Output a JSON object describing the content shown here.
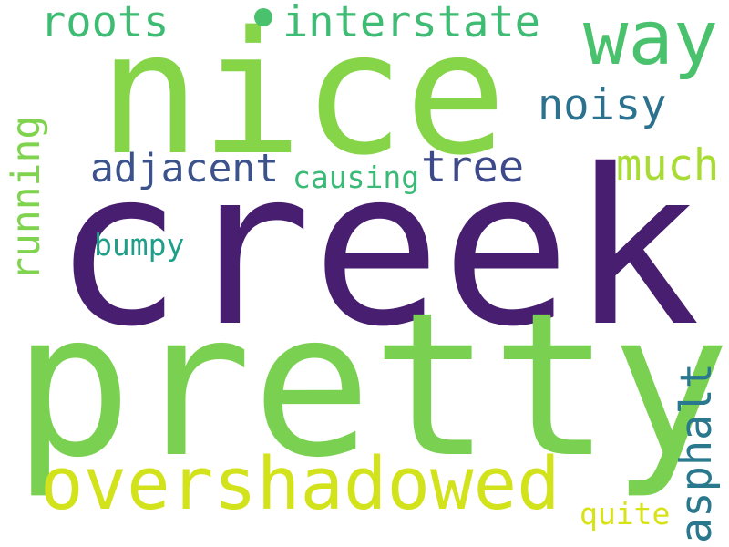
{
  "words": {
    "creek": {
      "text": "creek",
      "color": "#481f70"
    },
    "pretty": {
      "text": "pretty",
      "color": "#7ad151"
    },
    "nice": {
      "text": "nice",
      "color": "#86d549"
    },
    "overshadowed": {
      "text": "overshadowed",
      "color": "#d2e21b"
    },
    "way": {
      "text": "way",
      "color": "#4ac16d"
    },
    "interstate": {
      "text": "interstate",
      "color": "#3fbc73"
    },
    "roots": {
      "text": "roots",
      "color": "#3fbc73"
    },
    "noisy": {
      "text": "noisy",
      "color": "#2c728e"
    },
    "adjacent": {
      "text": "adjacent",
      "color": "#3b528b"
    },
    "tree": {
      "text": "tree",
      "color": "#3e4989"
    },
    "causing": {
      "text": "causing",
      "color": "#3aba76"
    },
    "much": {
      "text": "much",
      "color": "#a8db34"
    },
    "running": {
      "text": "running",
      "color": "#7fd34e"
    },
    "bumpy": {
      "text": "bumpy",
      "color": "#1f9e89"
    },
    "asphalt": {
      "text": "asphalt",
      "color": "#2a788e"
    },
    "quite": {
      "text": "quite",
      "color": "#d8e219"
    },
    "dot": {
      "color": "#4ac16d"
    }
  }
}
